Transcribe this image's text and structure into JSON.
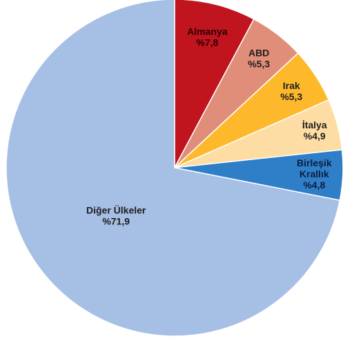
{
  "chart_data": {
    "type": "pie",
    "slices": [
      {
        "name": "Almanya",
        "value": 7.8,
        "label_lines": [
          "Almanya",
          "%7,8"
        ],
        "color": "#C0141E",
        "text_color": "#2a0000"
      },
      {
        "name": "ABD",
        "value": 5.3,
        "label_lines": [
          "ABD",
          "%5,3"
        ],
        "color": "#E08E79",
        "text_color": "#1e1e1e"
      },
      {
        "name": "Irak",
        "value": 5.3,
        "label_lines": [
          "Irak",
          "%5,3"
        ],
        "color": "#FDB92B",
        "text_color": "#1e1e1e"
      },
      {
        "name": "İtalya",
        "value": 4.9,
        "label_lines": [
          "İtalya",
          "%4,9"
        ],
        "color": "#FDDDA3",
        "text_color": "#1e1e1e"
      },
      {
        "name": "Birleşik Krallık",
        "value": 4.8,
        "label_lines": [
          "Birleşik",
          "Krallık",
          "%4,8"
        ],
        "color": "#2F7FC8",
        "text_color": "#0a1e3c"
      },
      {
        "name": "Diğer Ülkeler",
        "value": 71.9,
        "label_lines": [
          "Diğer Ülkeler",
          "%71,9"
        ],
        "color": "#A6BFE5",
        "text_color": "#1e1e1e"
      }
    ],
    "start_angle": "12 o'clock",
    "direction": "clockwise",
    "legend": "none"
  }
}
